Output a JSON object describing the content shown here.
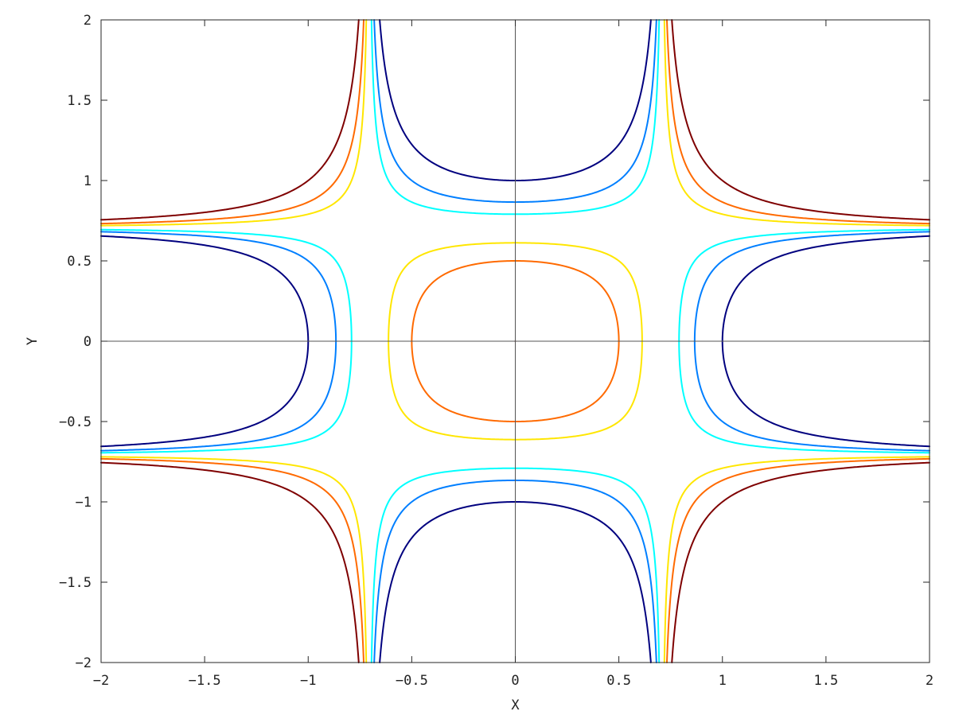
{
  "chart_data": {
    "type": "contour",
    "title": "",
    "xlabel": "X",
    "ylabel": "Y",
    "xlim": [
      -2,
      2
    ],
    "ylim": [
      -2,
      2
    ],
    "xticks": [
      -2,
      -1.5,
      -1,
      -0.5,
      0,
      0.5,
      1,
      1.5,
      2
    ],
    "yticks": [
      -2,
      -1.5,
      -1,
      -0.5,
      0,
      0.5,
      1,
      1.5,
      2
    ],
    "xtick_labels": [
      "−2",
      "−1.5",
      "−1",
      "−0.5",
      "0",
      "0.5",
      "1",
      "1.5",
      "2"
    ],
    "ytick_labels": [
      "−2",
      "−1.5",
      "−1",
      "−0.5",
      "0",
      "0.5",
      "1",
      "1.5",
      "2"
    ],
    "grid": false,
    "zero_axes": true,
    "series": [
      {
        "level": -1,
        "color": "#00007f"
      },
      {
        "level": -0.5,
        "color": "#007fff"
      },
      {
        "level": -0.25,
        "color": "#00ffff"
      },
      {
        "level": 0.25,
        "color": "#ffe600"
      },
      {
        "level": 0.5,
        "color": "#ff6a00"
      },
      {
        "level": 1,
        "color": "#7f0000"
      }
    ]
  }
}
